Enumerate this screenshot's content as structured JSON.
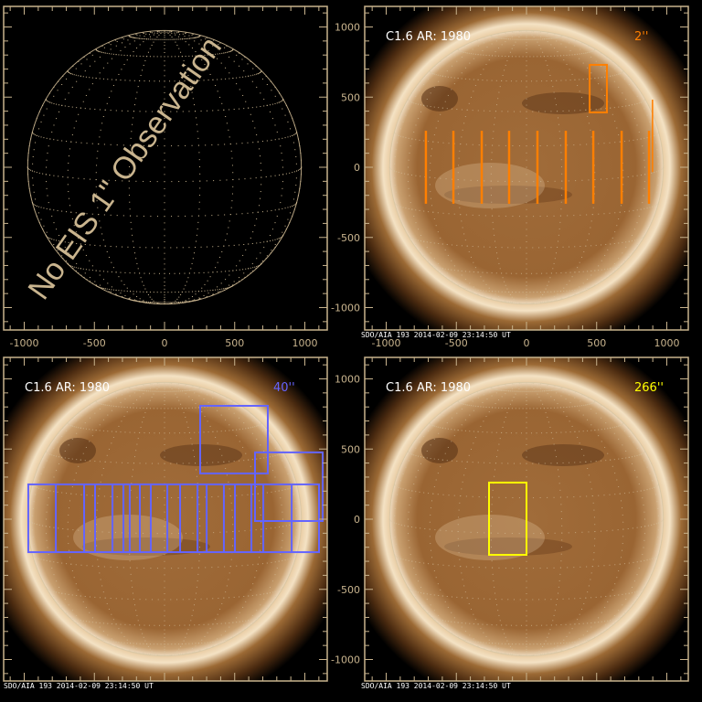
{
  "colors": {
    "frame": "#c9b48e",
    "text": "#ffffff",
    "orange": "#ff7f00",
    "blue": "#6464ff",
    "yellow": "#ffff00"
  },
  "axis_ticks": [
    "-1000",
    "-500",
    "0",
    "500",
    "1000"
  ],
  "panels": [
    {
      "id": "top-left",
      "type": "empty-grid",
      "message": "No EIS 1\" Observation"
    },
    {
      "id": "top-right",
      "label": "C1.6 AR: 1980",
      "slit": "2''",
      "slit_color": "#ff7f00",
      "footer": "SDO/AIA 193  2014-02-09 23:14:50 UT",
      "rasters_arcsec": [
        {
          "x0": -725,
          "x1": -709,
          "y0": -260,
          "y1": 260
        },
        {
          "x0": -529,
          "x1": -513,
          "y0": -260,
          "y1": 260
        },
        {
          "x0": -327,
          "x1": -311,
          "y0": -260,
          "y1": 260
        },
        {
          "x0": -132,
          "x1": -116,
          "y0": -260,
          "y1": 260
        },
        {
          "x0": 70,
          "x1": 86,
          "y0": -260,
          "y1": 260
        },
        {
          "x0": 272,
          "x1": 288,
          "y0": -260,
          "y1": 260
        },
        {
          "x0": 468,
          "x1": 484,
          "y0": -260,
          "y1": 260
        },
        {
          "x0": 670,
          "x1": 686,
          "y0": -260,
          "y1": 260
        },
        {
          "x0": 865,
          "x1": 881,
          "y0": -260,
          "y1": 260
        },
        {
          "x0": 893,
          "x1": 903,
          "y0": -34,
          "y1": 482
        }
      ],
      "boxes_arcsec": [
        {
          "x0": 450,
          "x1": 573,
          "y0": 391,
          "y1": 730
        }
      ]
    },
    {
      "id": "bottom-left",
      "label": "C1.6 AR: 1980",
      "slit": "40''",
      "slit_color": "#6464ff",
      "footer": "SDO/AIA 193  2014-02-09 23:14:50 UT",
      "strip_arcsec": {
        "edges": [
          -971,
          -775,
          -573,
          -495,
          -371,
          -293,
          -248,
          -176,
          -98,
          20,
          111,
          235,
          300,
          423,
          502,
          619,
          704,
          906,
          1101
        ],
        "y0": -235,
        "y1": 248
      },
      "boxes_arcsec": [
        {
          "x0": 254,
          "x1": 736,
          "y0": 326,
          "y1": 808
        },
        {
          "x0": 645,
          "x1": 1127,
          "y0": -13,
          "y1": 476
        }
      ]
    },
    {
      "id": "bottom-right",
      "label": "C1.6 AR: 1980",
      "slit": "266''",
      "slit_color": "#ffff00",
      "footer": "SDO/AIA 193  2014-02-09 23:14:50 UT",
      "boxes_arcsec": [
        {
          "x0": -267,
          "x1": 0,
          "y0": -254,
          "y1": 261
        }
      ]
    }
  ]
}
